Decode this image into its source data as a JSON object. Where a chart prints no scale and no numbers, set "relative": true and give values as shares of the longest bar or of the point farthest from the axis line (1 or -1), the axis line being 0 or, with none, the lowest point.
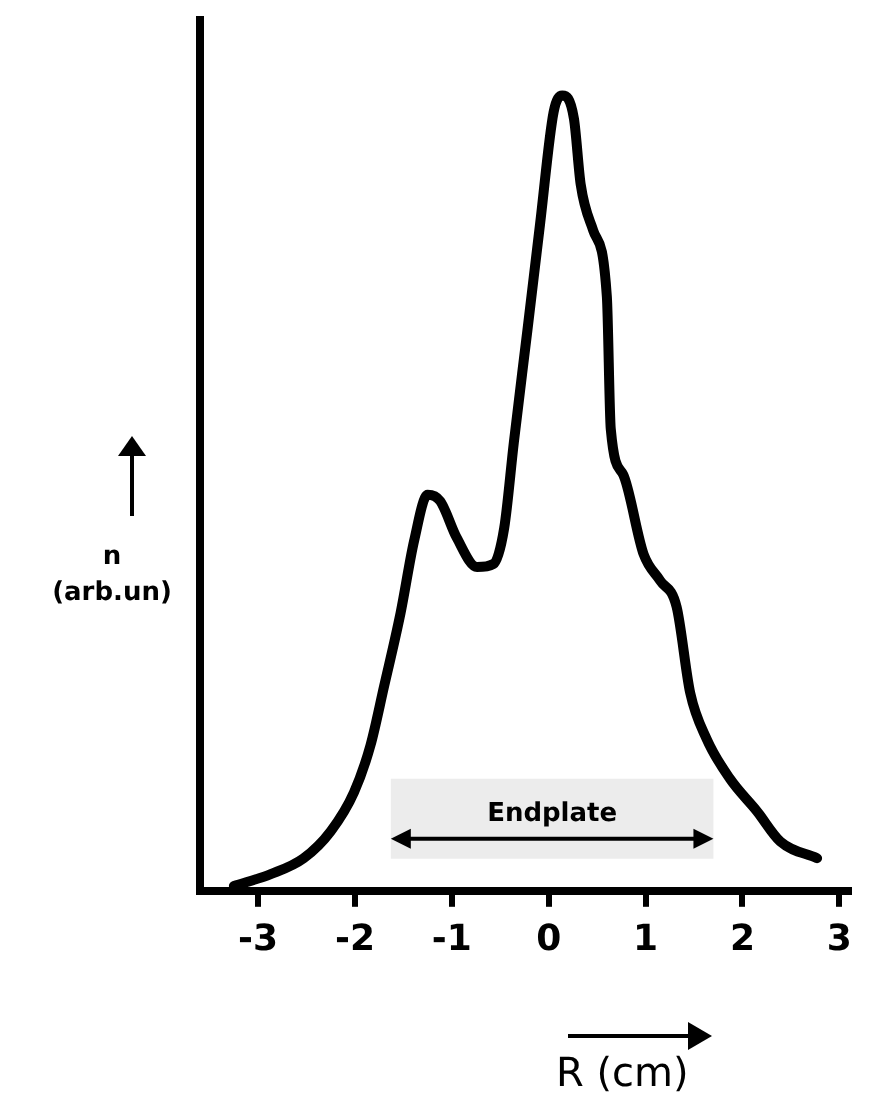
{
  "chart_data": {
    "type": "line",
    "relative": true,
    "xlabel": "R (cm)",
    "ylabel": "n (arb.un)",
    "x": [
      -3.25,
      -2.87,
      -2.53,
      -2.25,
      -2.01,
      -1.84,
      -1.7,
      -1.53,
      -1.39,
      -1.25,
      -1.12,
      -0.95,
      -0.74,
      -0.57,
      -0.46,
      -0.36,
      -0.22,
      -0.09,
      0.05,
      0.14,
      0.26,
      0.33,
      0.46,
      0.6,
      0.64,
      0.77,
      0.98,
      1.15,
      1.32,
      1.46,
      1.63,
      1.87,
      2.15,
      2.39,
      2.77
    ],
    "series": [
      {
        "color": "#000000",
        "values": [
          0.006,
          0.021,
          0.041,
          0.075,
          0.124,
          0.183,
          0.257,
          0.349,
          0.44,
          0.498,
          0.49,
          0.444,
          0.407,
          0.411,
          0.456,
          0.564,
          0.705,
          0.838,
          0.979,
          1.0,
          0.971,
          0.888,
          0.83,
          0.747,
          0.581,
          0.523,
          0.423,
          0.39,
          0.357,
          0.249,
          0.191,
          0.141,
          0.1,
          0.062,
          0.041
        ]
      }
    ],
    "xlim": [
      -3.6,
      3.1
    ],
    "xticks": [
      -3,
      -2,
      -1,
      0,
      1,
      2,
      3
    ],
    "bands": [
      {
        "axis": "x",
        "from": -1.63,
        "to": 1.7,
        "label": "Endplate"
      }
    ],
    "grid": false,
    "legend": false,
    "marker": "none",
    "line_style": "solid"
  }
}
